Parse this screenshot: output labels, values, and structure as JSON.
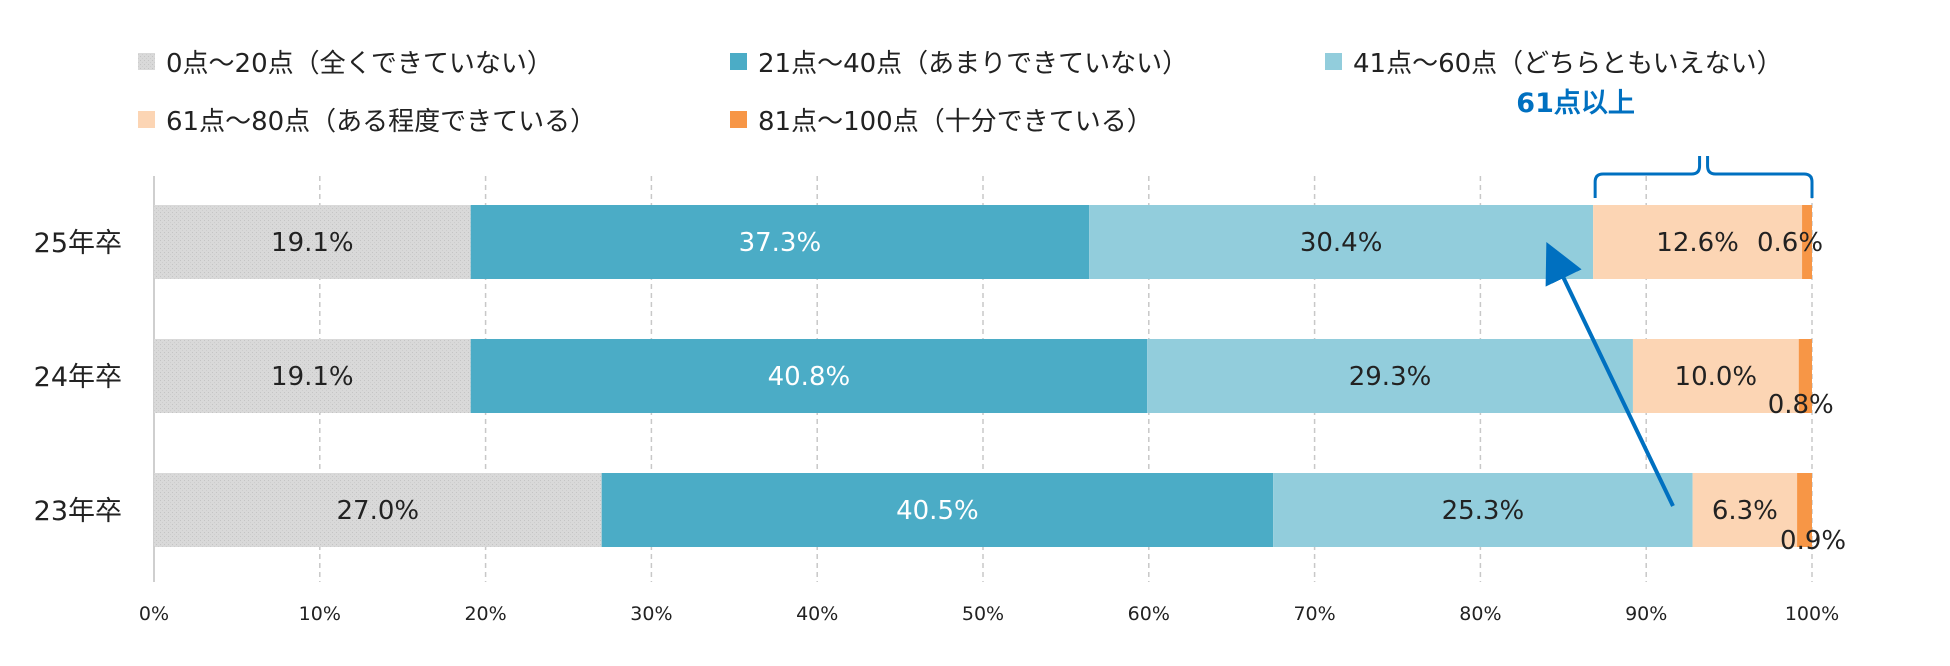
{
  "chart_data": {
    "type": "bar",
    "orientation": "horizontal",
    "stacked": true,
    "categories": [
      "25年卒",
      "24年卒",
      "23年卒"
    ],
    "series": [
      {
        "name": "0点～20点（全くできていない）",
        "color": "#d9d9d9",
        "values": [
          19.1,
          19.1,
          27.0
        ],
        "labels": [
          "19.1%",
          "19.1%",
          "27.0%"
        ]
      },
      {
        "name": "21点～40点（あまりできていない）",
        "color": "#4bacc6",
        "values": [
          37.3,
          40.8,
          40.5
        ],
        "labels": [
          "37.3%",
          "40.8%",
          "40.5%"
        ]
      },
      {
        "name": "41点～60点（どちらともいえない）",
        "color": "#92cddc",
        "values": [
          30.4,
          29.3,
          25.3
        ],
        "labels": [
          "30.4%",
          "29.3%",
          "25.3%"
        ]
      },
      {
        "name": "61点～80点（ある程度できている）",
        "color": "#fcd5b4",
        "values": [
          12.6,
          10.0,
          6.3
        ],
        "labels": [
          "12.6%",
          "10.0%",
          "6.3%"
        ]
      },
      {
        "name": "81点～100点（十分できている）",
        "color": "#f79646",
        "values": [
          0.6,
          0.8,
          0.9
        ],
        "labels": [
          "0.6%",
          "0.8%",
          "0.9%"
        ]
      }
    ],
    "xlim": [
      0,
      100
    ],
    "x_ticks": [
      "0%",
      "10%",
      "20%",
      "30%",
      "40%",
      "50%",
      "60%",
      "70%",
      "80%",
      "90%",
      "100%"
    ],
    "grid": true,
    "legend_position": "top",
    "annotation": {
      "label": "61点以上",
      "color": "#0070c0"
    }
  }
}
